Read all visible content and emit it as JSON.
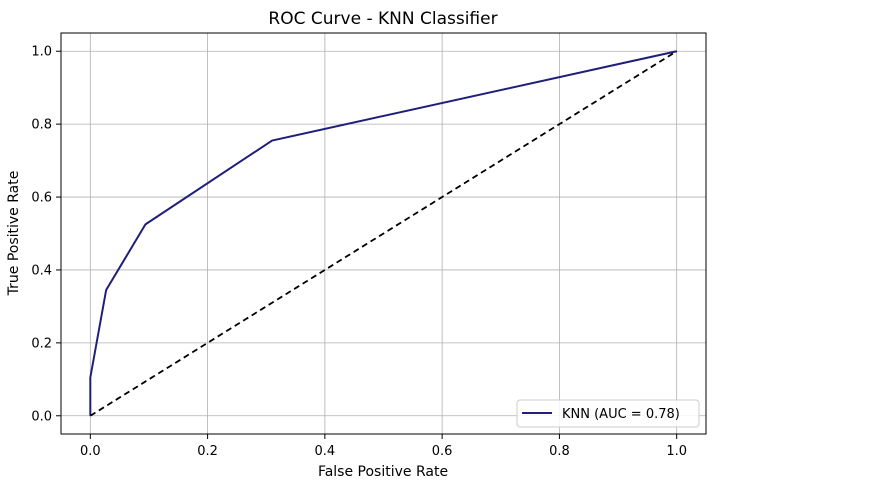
{
  "chart_data": {
    "type": "line",
    "title": "ROC Curve - KNN Classifier",
    "xlabel": "False Positive Rate",
    "ylabel": "True Positive Rate",
    "xlim": [
      -0.05,
      1.05
    ],
    "ylim": [
      -0.05,
      1.05
    ],
    "xticks": [
      0.0,
      0.2,
      0.4,
      0.6,
      0.8,
      1.0
    ],
    "yticks": [
      0.0,
      0.2,
      0.4,
      0.6,
      0.8,
      1.0
    ],
    "xtick_labels": [
      "0.0",
      "0.2",
      "0.4",
      "0.6",
      "0.8",
      "1.0"
    ],
    "ytick_labels": [
      "0.0",
      "0.2",
      "0.4",
      "0.6",
      "0.8",
      "1.0"
    ],
    "grid": true,
    "legend_position": "bottom-right",
    "series": [
      {
        "name": "KNN (AUC = 0.78)",
        "color": "#1f1f7a",
        "style": "solid",
        "x": [
          0.0,
          0.0,
          0.027,
          0.094,
          0.31,
          1.0
        ],
        "y": [
          0.0,
          0.105,
          0.345,
          0.525,
          0.755,
          1.0
        ]
      },
      {
        "color": "#000000",
        "style": "dashed",
        "x": [
          0.0,
          1.0
        ],
        "y": [
          0.0,
          1.0
        ]
      }
    ]
  }
}
